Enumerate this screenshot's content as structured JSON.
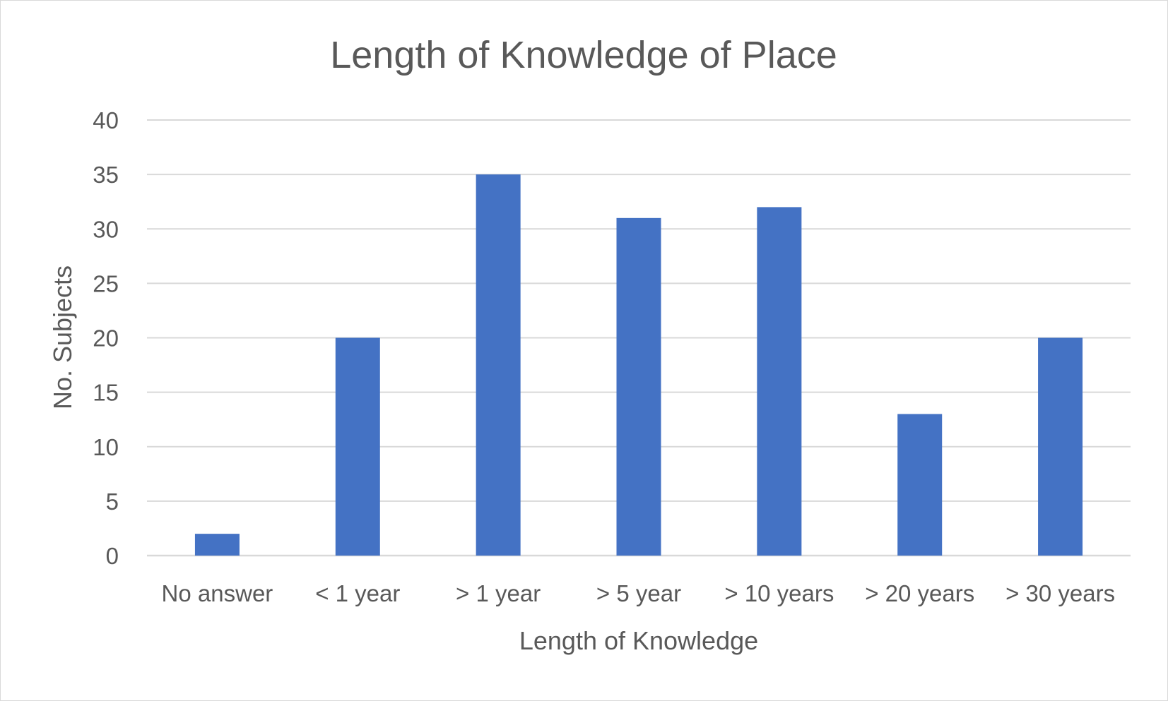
{
  "chart_data": {
    "type": "bar",
    "title": "Length of Knowledge of Place",
    "xlabel": "Length of Knowledge",
    "ylabel": "No. Subjects",
    "categories": [
      "No answer",
      "< 1 year",
      "> 1 year",
      "> 5 year",
      "> 10 years",
      "> 20 years",
      "> 30 years"
    ],
    "values": [
      2,
      20,
      35,
      31,
      32,
      13,
      20
    ],
    "ylim": [
      0,
      40
    ],
    "yticks": [
      "0",
      "5",
      "10",
      "15",
      "20",
      "25",
      "30",
      "35",
      "40"
    ],
    "grid": true,
    "legend": "none",
    "colors": {
      "bar": "#4472c4",
      "grid": "#d9d9d9",
      "text": "#595959"
    }
  }
}
